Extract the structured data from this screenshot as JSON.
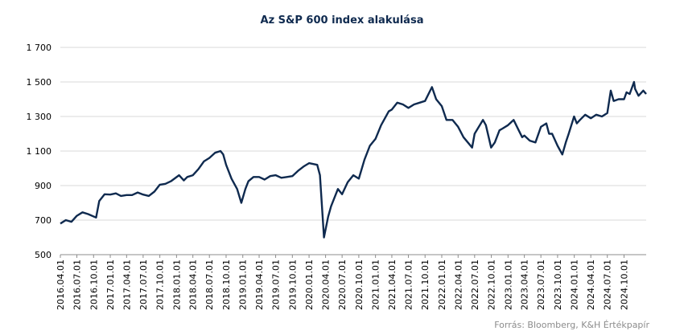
{
  "chart_data": {
    "type": "line",
    "title": "Az S&P 600 index alakulása",
    "xlabel": "",
    "ylabel": "",
    "ylim": [
      500,
      1700
    ],
    "yticks": [
      500,
      700,
      900,
      1100,
      1300,
      1500,
      1700
    ],
    "ytick_labels": [
      "500",
      "700",
      "900",
      "1 100",
      "1 300",
      "1 500",
      "1 700"
    ],
    "xlim": [
      "2016.04.01",
      "2025.01.31"
    ],
    "xtick_labels": [
      "2016.04.01",
      "2016.07.01",
      "2016.10.01",
      "2017.01.01",
      "2017.04.01",
      "2017.07.01",
      "2017.10.01",
      "2018.01.01",
      "2018.04.01",
      "2018.07.01",
      "2018.10.01",
      "2019.01.01",
      "2019.04.01",
      "2019.07.01",
      "2019.10.01",
      "2020.01.01",
      "2020.04.01",
      "2020.07.01",
      "2020.10.01",
      "2021.01.01",
      "2021.04.01",
      "2021.07.01",
      "2021.10.01",
      "2022.01.01",
      "2022.04.01",
      "2022.07.01",
      "2022.10.01",
      "2023.01.01",
      "2023.04.01",
      "2023.07.01",
      "2023.10.01",
      "2024.01.01",
      "2024.04.01",
      "2024.07.01",
      "2024.10.01"
    ],
    "grid": "horizontal",
    "legend": "none",
    "color": "#0f2a4f",
    "series": [
      {
        "x": [
          "2016.04.01",
          "2016.05.01",
          "2016.06.01",
          "2016.07.01",
          "2016.08.01",
          "2016.09.01",
          "2016.10.15",
          "2016.11.01",
          "2016.12.01",
          "2017.01.01",
          "2017.02.01",
          "2017.03.01",
          "2017.04.01",
          "2017.05.01",
          "2017.06.01",
          "2017.07.01",
          "2017.08.01",
          "2017.09.01",
          "2017.10.01",
          "2017.11.01",
          "2017.12.01",
          "2018.01.15",
          "2018.02.10",
          "2018.03.01",
          "2018.04.01",
          "2018.05.01",
          "2018.06.01",
          "2018.07.01",
          "2018.08.01",
          "2018.08.31",
          "2018.09.15",
          "2018.10.01",
          "2018.10.31",
          "2018.12.01",
          "2018.12.24",
          "2019.01.15",
          "2019.02.01",
          "2019.03.01",
          "2019.04.01",
          "2019.05.01",
          "2019.06.01",
          "2019.07.01",
          "2019.08.01",
          "2019.09.01",
          "2019.10.01",
          "2019.11.01",
          "2019.12.01",
          "2020.01.01",
          "2020.02.15",
          "2020.03.01",
          "2020.03.23",
          "2020.04.15",
          "2020.05.01",
          "2020.06.08",
          "2020.07.01",
          "2020.08.01",
          "2020.09.01",
          "2020.10.01",
          "2020.11.01",
          "2020.12.01",
          "2021.01.01",
          "2021.02.01",
          "2021.03.15",
          "2021.04.01",
          "2021.05.01",
          "2021.06.01",
          "2021.07.01",
          "2021.08.01",
          "2021.09.01",
          "2021.10.01",
          "2021.11.08",
          "2021.12.01",
          "2022.01.01",
          "2022.01.27",
          "2022.03.01",
          "2022.04.01",
          "2022.05.01",
          "2022.06.17",
          "2022.07.01",
          "2022.08.16",
          "2022.09.01",
          "2022.09.30",
          "2022.10.20",
          "2022.11.15",
          "2022.12.01",
          "2023.01.01",
          "2023.02.01",
          "2023.03.01",
          "2023.03.20",
          "2023.04.01",
          "2023.05.01",
          "2023.06.01",
          "2023.07.01",
          "2023.07.31",
          "2023.08.15",
          "2023.09.01",
          "2023.10.01",
          "2023.10.27",
          "2023.11.15",
          "2023.12.01",
          "2023.12.31",
          "2024.01.15",
          "2024.02.01",
          "2024.03.01",
          "2024.04.01",
          "2024.05.01",
          "2024.06.01",
          "2024.07.01",
          "2024.07.20",
          "2024.08.05",
          "2024.09.01",
          "2024.10.01",
          "2024.10.15",
          "2024.11.01",
          "2024.11.25",
          "2024.12.01",
          "2024.12.20",
          "2025.01.15",
          "2025.01.31"
        ],
        "values": [
          680,
          700,
          690,
          725,
          745,
          735,
          715,
          810,
          850,
          848,
          855,
          840,
          845,
          845,
          860,
          848,
          840,
          865,
          905,
          910,
          925,
          960,
          930,
          950,
          960,
          995,
          1040,
          1060,
          1090,
          1100,
          1080,
          1020,
          940,
          880,
          800,
          880,
          925,
          950,
          950,
          935,
          955,
          960,
          945,
          950,
          955,
          985,
          1010,
          1030,
          1020,
          960,
          600,
          720,
          780,
          880,
          850,
          920,
          960,
          940,
          1050,
          1130,
          1170,
          1250,
          1330,
          1340,
          1380,
          1370,
          1350,
          1370,
          1380,
          1390,
          1470,
          1400,
          1360,
          1280,
          1280,
          1240,
          1180,
          1120,
          1200,
          1280,
          1250,
          1120,
          1150,
          1220,
          1230,
          1250,
          1280,
          1220,
          1180,
          1190,
          1160,
          1150,
          1240,
          1260,
          1200,
          1200,
          1130,
          1080,
          1150,
          1200,
          1300,
          1260,
          1280,
          1310,
          1290,
          1310,
          1300,
          1320,
          1450,
          1390,
          1400,
          1400,
          1440,
          1430,
          1500,
          1460,
          1420,
          1450,
          1430
        ]
      }
    ]
  },
  "source_text": "Forrás: Bloomberg,  K&H Értékpapír"
}
